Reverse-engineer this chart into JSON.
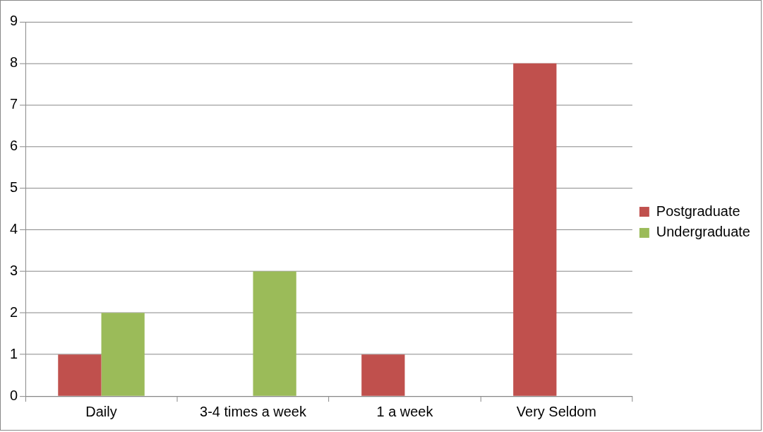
{
  "chart_data": {
    "type": "bar",
    "categories": [
      "Daily",
      "3-4 times a week",
      "1 a week",
      "Very Seldom"
    ],
    "series": [
      {
        "name": "Postgraduate",
        "color": "#c0504d",
        "values": [
          1,
          0,
          1,
          8
        ]
      },
      {
        "name": "Undergraduate",
        "color": "#9bbb59",
        "values": [
          2,
          3,
          0,
          0
        ]
      }
    ],
    "ylim": [
      0,
      9
    ],
    "yticks": [
      0,
      1,
      2,
      3,
      4,
      5,
      6,
      7,
      8,
      9
    ],
    "grid": "y",
    "legend": "right"
  }
}
